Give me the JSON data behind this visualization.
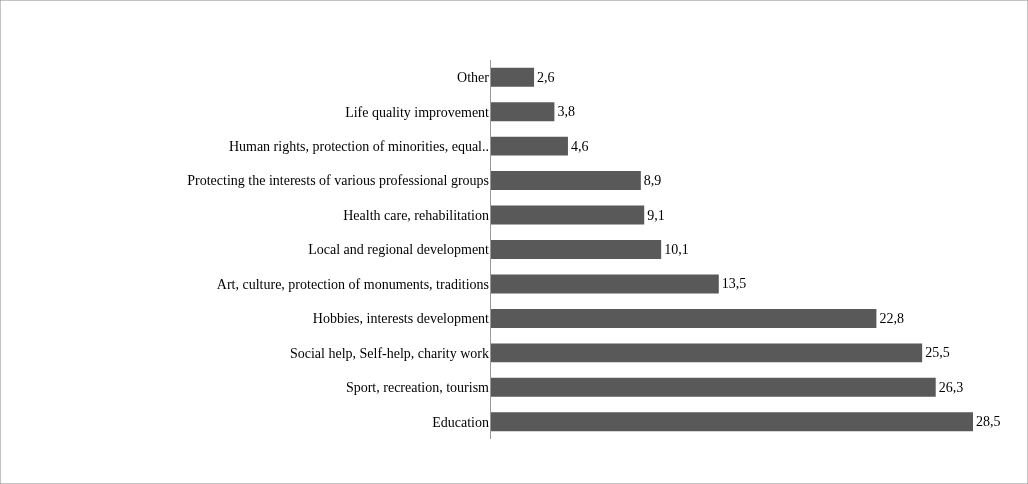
{
  "chart_data": {
    "type": "bar",
    "orientation": "horizontal",
    "tick_labels": "y",
    "categories": [
      "Other",
      "Life quality improvement",
      "Human rights, protection of minorities, equal..",
      "Protecting the interests of various professional groups",
      "Health care, rehabilitation",
      "Local and regional development",
      "Art, culture, protection of monuments, traditions",
      "Hobbies, interests development",
      "Social help, Self-help, charity work",
      "Sport, recreation, tourism",
      "Education"
    ],
    "values": [
      2.6,
      3.8,
      4.6,
      8.9,
      9.1,
      10.1,
      13.5,
      22.8,
      25.5,
      26.3,
      28.5
    ],
    "value_labels": [
      "2,6",
      "3,8",
      "4,6",
      "8,9",
      "9,1",
      "10,1",
      "13,5",
      "22,8",
      "25,5",
      "26,3",
      "28,5"
    ],
    "color": "#595959"
  }
}
